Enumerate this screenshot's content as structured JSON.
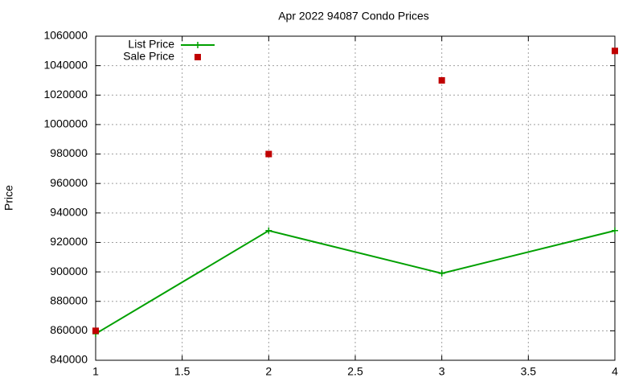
{
  "chart_data": {
    "type": "line",
    "title": "Apr 2022 94087 Condo Prices",
    "y_label": "Price",
    "x": [
      1,
      2,
      3,
      4
    ],
    "series": [
      {
        "name": "List Price",
        "color": "#00a000",
        "style": "linespoints",
        "values": [
          858000,
          928000,
          899000,
          928000
        ]
      },
      {
        "name": "Sale Price",
        "color": "#c00000",
        "style": "points",
        "values": [
          860000,
          980000,
          1030000,
          1050000
        ]
      }
    ],
    "xlim": [
      1,
      4
    ],
    "xticks": [
      1,
      1.5,
      2,
      2.5,
      3,
      3.5,
      4
    ],
    "ylim": [
      840000,
      1060000
    ],
    "yticks": [
      840000,
      860000,
      880000,
      900000,
      920000,
      940000,
      960000,
      980000,
      1000000,
      1020000,
      1040000,
      1060000
    ],
    "grid": true,
    "legend": "top-left"
  }
}
